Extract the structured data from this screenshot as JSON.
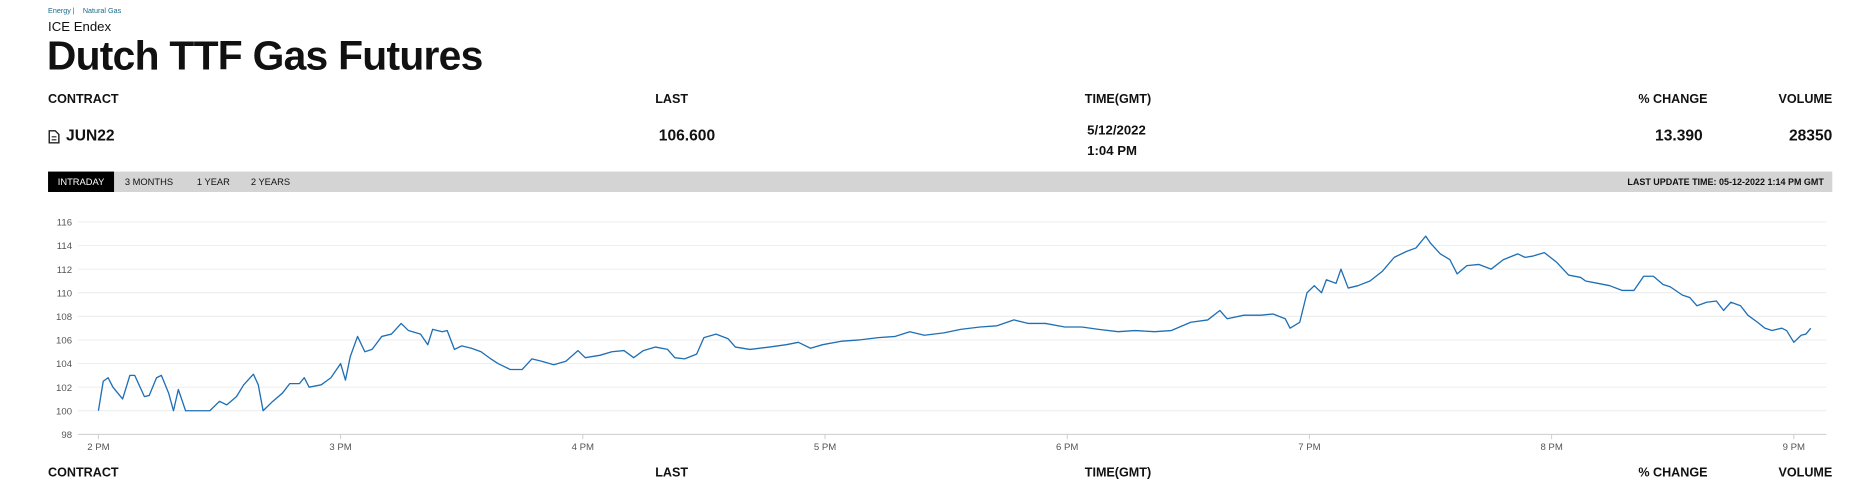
{
  "breadcrumb": [
    "Energy |",
    "Natural Gas"
  ],
  "exchange": "ICE Endex",
  "title": "Dutch TTF Gas Futures",
  "table": {
    "headers": [
      "CONTRACT",
      "LAST",
      "TIME(GMT)",
      "% CHANGE",
      "VOLUME"
    ],
    "rows": [
      [
        "JUN22",
        "106.600",
        [
          "5/12/2022",
          "1:04 PM"
        ],
        "13.390",
        "28350"
      ]
    ]
  },
  "tabs": [
    "INTRADAY",
    "3 MONTHS",
    "1 YEAR",
    "2 YEARS"
  ],
  "last_update": "LAST UPDATE TIME: 05-12-2022 1:14 PM GMT",
  "chart_data": {
    "type": "line",
    "color": "#1f6fb5",
    "x": [
      14.0,
      14.02,
      14.04,
      14.06,
      14.1,
      14.13,
      14.15,
      14.19,
      14.21,
      14.24,
      14.26,
      14.29,
      14.31,
      14.33,
      14.36,
      14.46,
      14.5,
      14.53,
      14.57,
      14.6,
      14.64,
      14.66,
      14.68,
      14.72,
      14.76,
      14.79,
      14.83,
      14.85,
      14.87,
      14.92,
      14.96,
      15.0,
      15.02,
      15.04,
      15.07,
      15.1,
      15.13,
      15.17,
      15.21,
      15.25,
      15.28,
      15.33,
      15.36,
      15.38,
      15.42,
      15.44,
      15.47,
      15.5,
      15.54,
      15.58,
      15.62,
      15.65,
      15.7,
      15.75,
      15.79,
      15.83,
      15.88,
      15.93,
      15.98,
      16.01,
      16.07,
      16.12,
      16.17,
      16.21,
      16.25,
      16.3,
      16.35,
      16.38,
      16.42,
      16.47,
      16.5,
      16.55,
      16.6,
      16.63,
      16.69,
      16.77,
      16.84,
      16.89,
      16.94,
      16.99,
      17.07,
      17.14,
      17.22,
      17.29,
      17.35,
      17.41,
      17.49,
      17.56,
      17.64,
      17.71,
      17.78,
      17.84,
      17.91,
      17.99,
      18.06,
      18.13,
      18.21,
      18.28,
      18.36,
      18.43,
      18.51,
      18.58,
      18.63,
      18.66,
      18.73,
      18.8,
      18.85,
      18.9,
      18.92,
      18.96,
      18.99,
      19.02,
      19.05,
      19.07,
      19.11,
      19.13,
      19.16,
      19.2,
      19.25,
      19.3,
      19.35,
      19.4,
      19.44,
      19.48,
      19.5,
      19.54,
      19.58,
      19.61,
      19.65,
      19.7,
      19.75,
      19.8,
      19.86,
      19.89,
      19.92,
      19.97,
      20.02,
      20.07,
      20.12,
      20.14,
      20.19,
      20.24,
      20.29,
      20.34,
      20.38,
      20.42,
      20.46,
      20.49,
      20.54,
      20.57,
      20.6,
      20.64,
      20.68,
      20.71,
      20.74,
      20.78,
      20.81,
      20.85,
      20.88,
      20.91,
      20.95,
      20.97,
      21.0,
      21.03,
      21.05,
      21.07
    ],
    "values": [
      100.0,
      102.5,
      102.8,
      102.0,
      101.0,
      103.0,
      103.0,
      101.2,
      101.3,
      102.8,
      103.0,
      101.5,
      100.0,
      101.8,
      100.0,
      100.0,
      100.8,
      100.5,
      101.2,
      102.2,
      103.1,
      102.2,
      100.0,
      100.8,
      101.5,
      102.3,
      102.3,
      102.8,
      102.0,
      102.2,
      102.8,
      104.0,
      102.6,
      104.6,
      106.3,
      105.0,
      105.2,
      106.3,
      106.5,
      107.4,
      106.8,
      106.5,
      105.6,
      106.9,
      106.7,
      106.8,
      105.2,
      105.5,
      105.3,
      105.0,
      104.4,
      104.0,
      103.5,
      103.5,
      104.4,
      104.2,
      103.9,
      104.2,
      105.1,
      104.5,
      104.7,
      105.0,
      105.1,
      104.5,
      105.1,
      105.4,
      105.2,
      104.5,
      104.4,
      104.8,
      106.2,
      106.5,
      106.1,
      105.4,
      105.2,
      105.4,
      105.6,
      105.8,
      105.3,
      105.6,
      105.9,
      106.0,
      106.2,
      106.3,
      106.7,
      106.4,
      106.6,
      106.9,
      107.1,
      107.2,
      107.7,
      107.4,
      107.4,
      107.1,
      107.1,
      106.9,
      106.7,
      106.8,
      106.7,
      106.8,
      107.5,
      107.7,
      108.5,
      107.8,
      108.1,
      108.1,
      108.2,
      107.8,
      107.0,
      107.5,
      110.0,
      110.6,
      110.0,
      111.1,
      110.8,
      112.0,
      110.4,
      110.6,
      111.0,
      111.8,
      113.0,
      113.5,
      113.8,
      114.8,
      114.2,
      113.3,
      112.8,
      111.6,
      112.3,
      112.4,
      112.0,
      112.8,
      113.3,
      113.0,
      113.1,
      113.4,
      112.6,
      111.5,
      111.3,
      111.0,
      110.8,
      110.6,
      110.2,
      110.2,
      111.4,
      111.4,
      110.7,
      110.5,
      109.8,
      109.6,
      108.9,
      109.2,
      109.3,
      108.5,
      109.2,
      108.9,
      108.1,
      107.5,
      107.0,
      106.8,
      107.0,
      106.8,
      105.8,
      106.4,
      106.5,
      107.0
    ],
    "xlim": [
      13.916,
      21.134
    ],
    "ylim": [
      98,
      116
    ],
    "xticks": [
      {
        "value": 14,
        "label": "2 PM"
      },
      {
        "value": 15,
        "label": "3 PM"
      },
      {
        "value": 16,
        "label": "4 PM"
      },
      {
        "value": 17,
        "label": "5 PM"
      },
      {
        "value": 18,
        "label": "6 PM"
      },
      {
        "value": 19,
        "label": "7 PM"
      },
      {
        "value": 20,
        "label": "8 PM"
      },
      {
        "value": 21,
        "label": "9 PM"
      }
    ],
    "yticks": [
      98,
      100,
      102,
      104,
      106,
      108,
      110,
      112,
      114,
      116
    ],
    "grid": true
  }
}
